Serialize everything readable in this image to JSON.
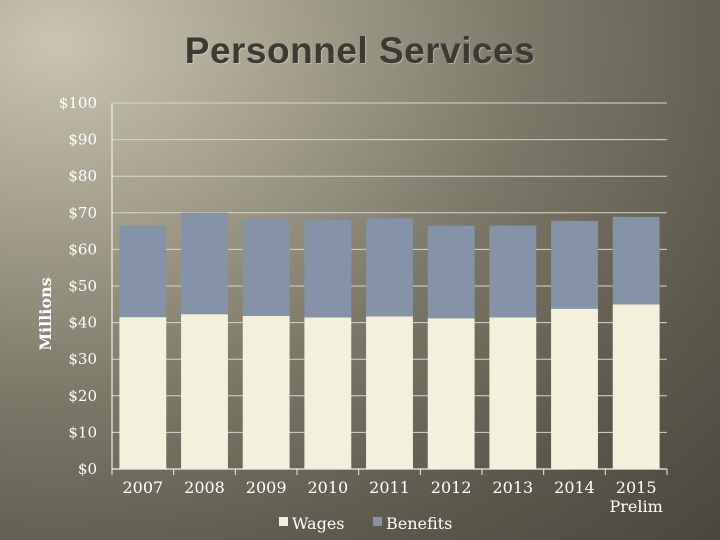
{
  "page": {
    "title": "Personnel Services"
  },
  "chart_data": {
    "type": "bar",
    "stacked": true,
    "title": "Personnel Services",
    "xlabel": "",
    "ylabel": "Millions",
    "categories": [
      "2007",
      "2008",
      "2009",
      "2010",
      "2011",
      "2012",
      "2013",
      "2014",
      "2015\nPrelim"
    ],
    "series": [
      {
        "name": "Wages",
        "color": "#f3f1dc",
        "values": [
          41.5,
          42.3,
          41.8,
          41.4,
          41.7,
          41.2,
          41.4,
          43.8,
          45.0
        ]
      },
      {
        "name": "Benefits",
        "color": "#8592a8",
        "values": [
          25.0,
          27.7,
          26.5,
          26.6,
          26.8,
          25.3,
          25.1,
          24.0,
          23.9
        ]
      }
    ],
    "ylim": [
      0,
      100
    ],
    "yticks": [
      0,
      10,
      20,
      30,
      40,
      50,
      60,
      70,
      80,
      90,
      100
    ],
    "ytick_labels": [
      "$0",
      "$10",
      "$20",
      "$30",
      "$40",
      "$50",
      "$60",
      "$70",
      "$80",
      "$90",
      "$100"
    ],
    "grid": true,
    "legend": "bottom"
  }
}
